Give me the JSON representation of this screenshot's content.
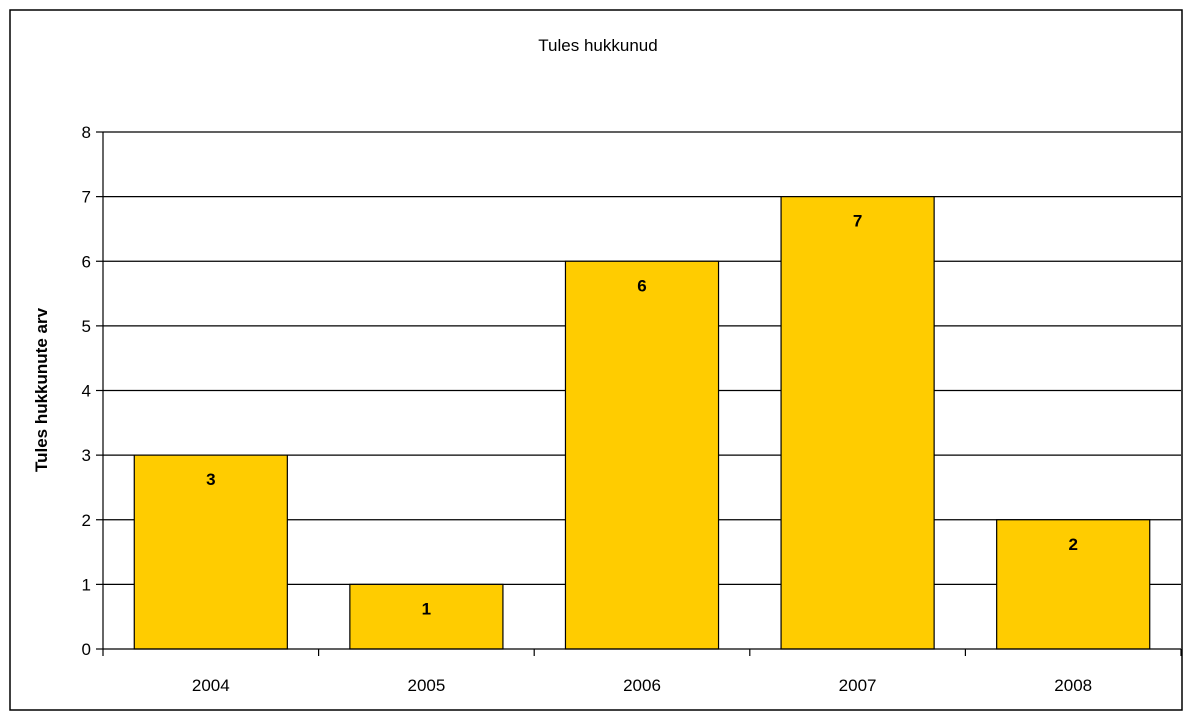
{
  "chart_data": {
    "type": "bar",
    "title": "Tules hukkunud",
    "xlabel": "",
    "ylabel": "Tules hukkunute arv",
    "categories": [
      "2004",
      "2005",
      "2006",
      "2007",
      "2008"
    ],
    "values": [
      3,
      1,
      6,
      7,
      2
    ],
    "ylim": [
      0,
      8
    ],
    "yticks": [
      0,
      1,
      2,
      3,
      4,
      5,
      6,
      7,
      8
    ],
    "grid": true,
    "legend": "none",
    "bar_color": "#FFCC00",
    "data_labels": true
  }
}
